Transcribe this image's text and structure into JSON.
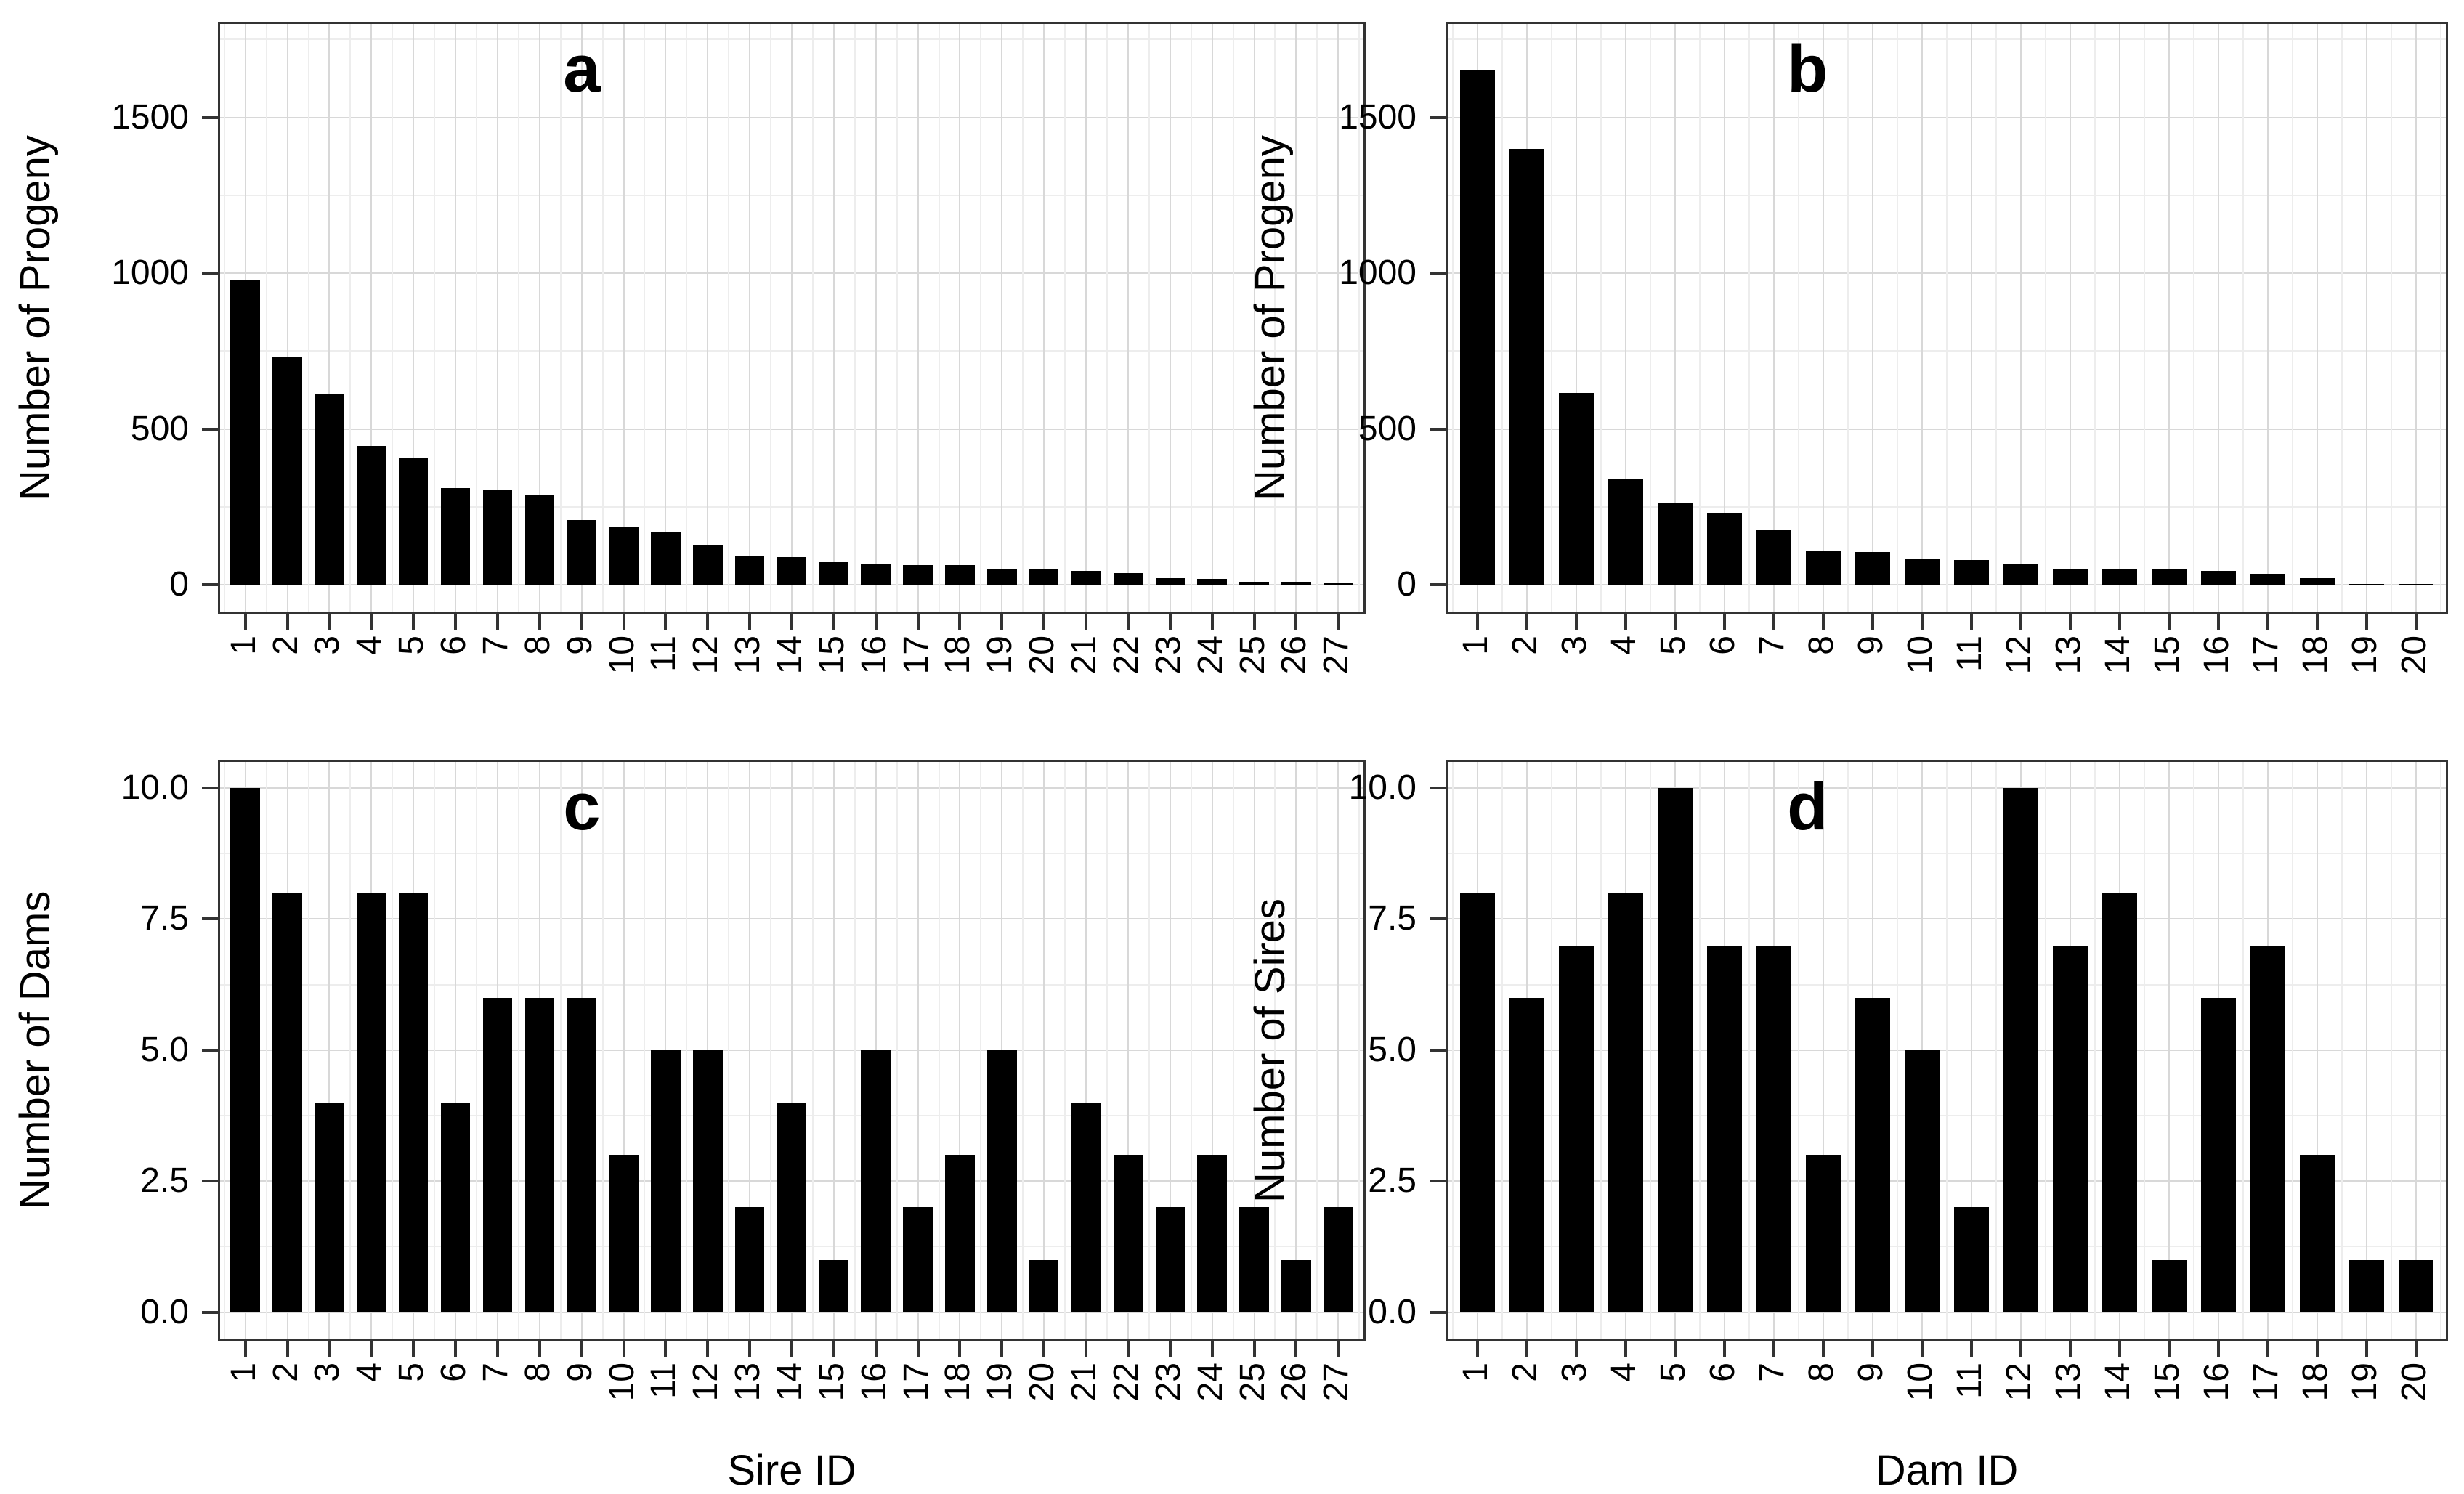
{
  "figure_style": {
    "background": "#ffffff",
    "bar_color": "#000000",
    "panel_border_color": "#333333",
    "grid_major_color": "#d8d8d8",
    "grid_minor_color": "#ededed",
    "tick_mark_color": "#333333",
    "text_color": "#000000"
  },
  "chart_data": [
    {
      "type": "bar",
      "panel_label": "a",
      "xlabel": "",
      "ylabel": "Number of Progeny",
      "categories": [
        1,
        2,
        3,
        4,
        5,
        6,
        7,
        8,
        9,
        10,
        11,
        12,
        13,
        14,
        15,
        16,
        17,
        18,
        19,
        20,
        21,
        22,
        23,
        24,
        25,
        26,
        27
      ],
      "values": [
        980,
        730,
        610,
        445,
        405,
        310,
        305,
        290,
        208,
        185,
        170,
        127,
        93,
        88,
        73,
        66,
        64,
        62,
        52,
        48,
        45,
        38,
        20,
        19,
        10,
        9,
        4
      ],
      "yticks": [
        0,
        500,
        1000,
        1500
      ],
      "ytick_labels": [
        "0",
        "500",
        "1000",
        "1500"
      ],
      "ylim": [
        0,
        1800
      ],
      "grid": true,
      "legend": "none"
    },
    {
      "type": "bar",
      "panel_label": "b",
      "xlabel": "",
      "ylabel": "Number of Progeny",
      "categories": [
        1,
        2,
        3,
        4,
        5,
        6,
        7,
        8,
        9,
        10,
        11,
        12,
        13,
        14,
        15,
        16,
        17,
        18,
        19,
        20
      ],
      "values": [
        1650,
        1400,
        615,
        340,
        260,
        230,
        175,
        110,
        105,
        85,
        80,
        65,
        52,
        50,
        50,
        45,
        35,
        20,
        3,
        2
      ],
      "yticks": [
        0,
        500,
        1000,
        1500
      ],
      "ytick_labels": [
        "0",
        "500",
        "1000",
        "1500"
      ],
      "ylim": [
        0,
        1800
      ],
      "grid": true,
      "legend": "none"
    },
    {
      "type": "bar",
      "panel_label": "c",
      "xlabel": "Sire ID",
      "ylabel": "Number of Dams",
      "categories": [
        1,
        2,
        3,
        4,
        5,
        6,
        7,
        8,
        9,
        10,
        11,
        12,
        13,
        14,
        15,
        16,
        17,
        18,
        19,
        20,
        21,
        22,
        23,
        24,
        25,
        26,
        27
      ],
      "values": [
        10,
        8,
        4,
        8,
        8,
        4,
        6,
        6,
        6,
        3,
        5,
        5,
        2,
        4,
        1,
        5,
        2,
        3,
        5,
        1,
        4,
        3,
        2,
        3,
        2,
        1,
        2
      ],
      "yticks": [
        0,
        2.5,
        5,
        7.5,
        10
      ],
      "ytick_labels": [
        "0.0",
        "2.5",
        "5.0",
        "7.5",
        "10.0"
      ],
      "ylim": [
        0,
        10.5
      ],
      "grid": true,
      "legend": "none"
    },
    {
      "type": "bar",
      "panel_label": "d",
      "xlabel": "Dam ID",
      "ylabel": "Number of Sires",
      "categories": [
        1,
        2,
        3,
        4,
        5,
        6,
        7,
        8,
        9,
        10,
        11,
        12,
        13,
        14,
        15,
        16,
        17,
        18,
        19,
        20
      ],
      "values": [
        8,
        6,
        7,
        8,
        10,
        7,
        7,
        3,
        6,
        5,
        2,
        10,
        7,
        8,
        1,
        6,
        7,
        3,
        1,
        1
      ],
      "yticks": [
        0,
        2.5,
        5,
        7.5,
        10
      ],
      "ytick_labels": [
        "0.0",
        "2.5",
        "5.0",
        "7.5",
        "10.0"
      ],
      "ylim": [
        0,
        10.5
      ],
      "grid": true,
      "legend": "none"
    }
  ]
}
